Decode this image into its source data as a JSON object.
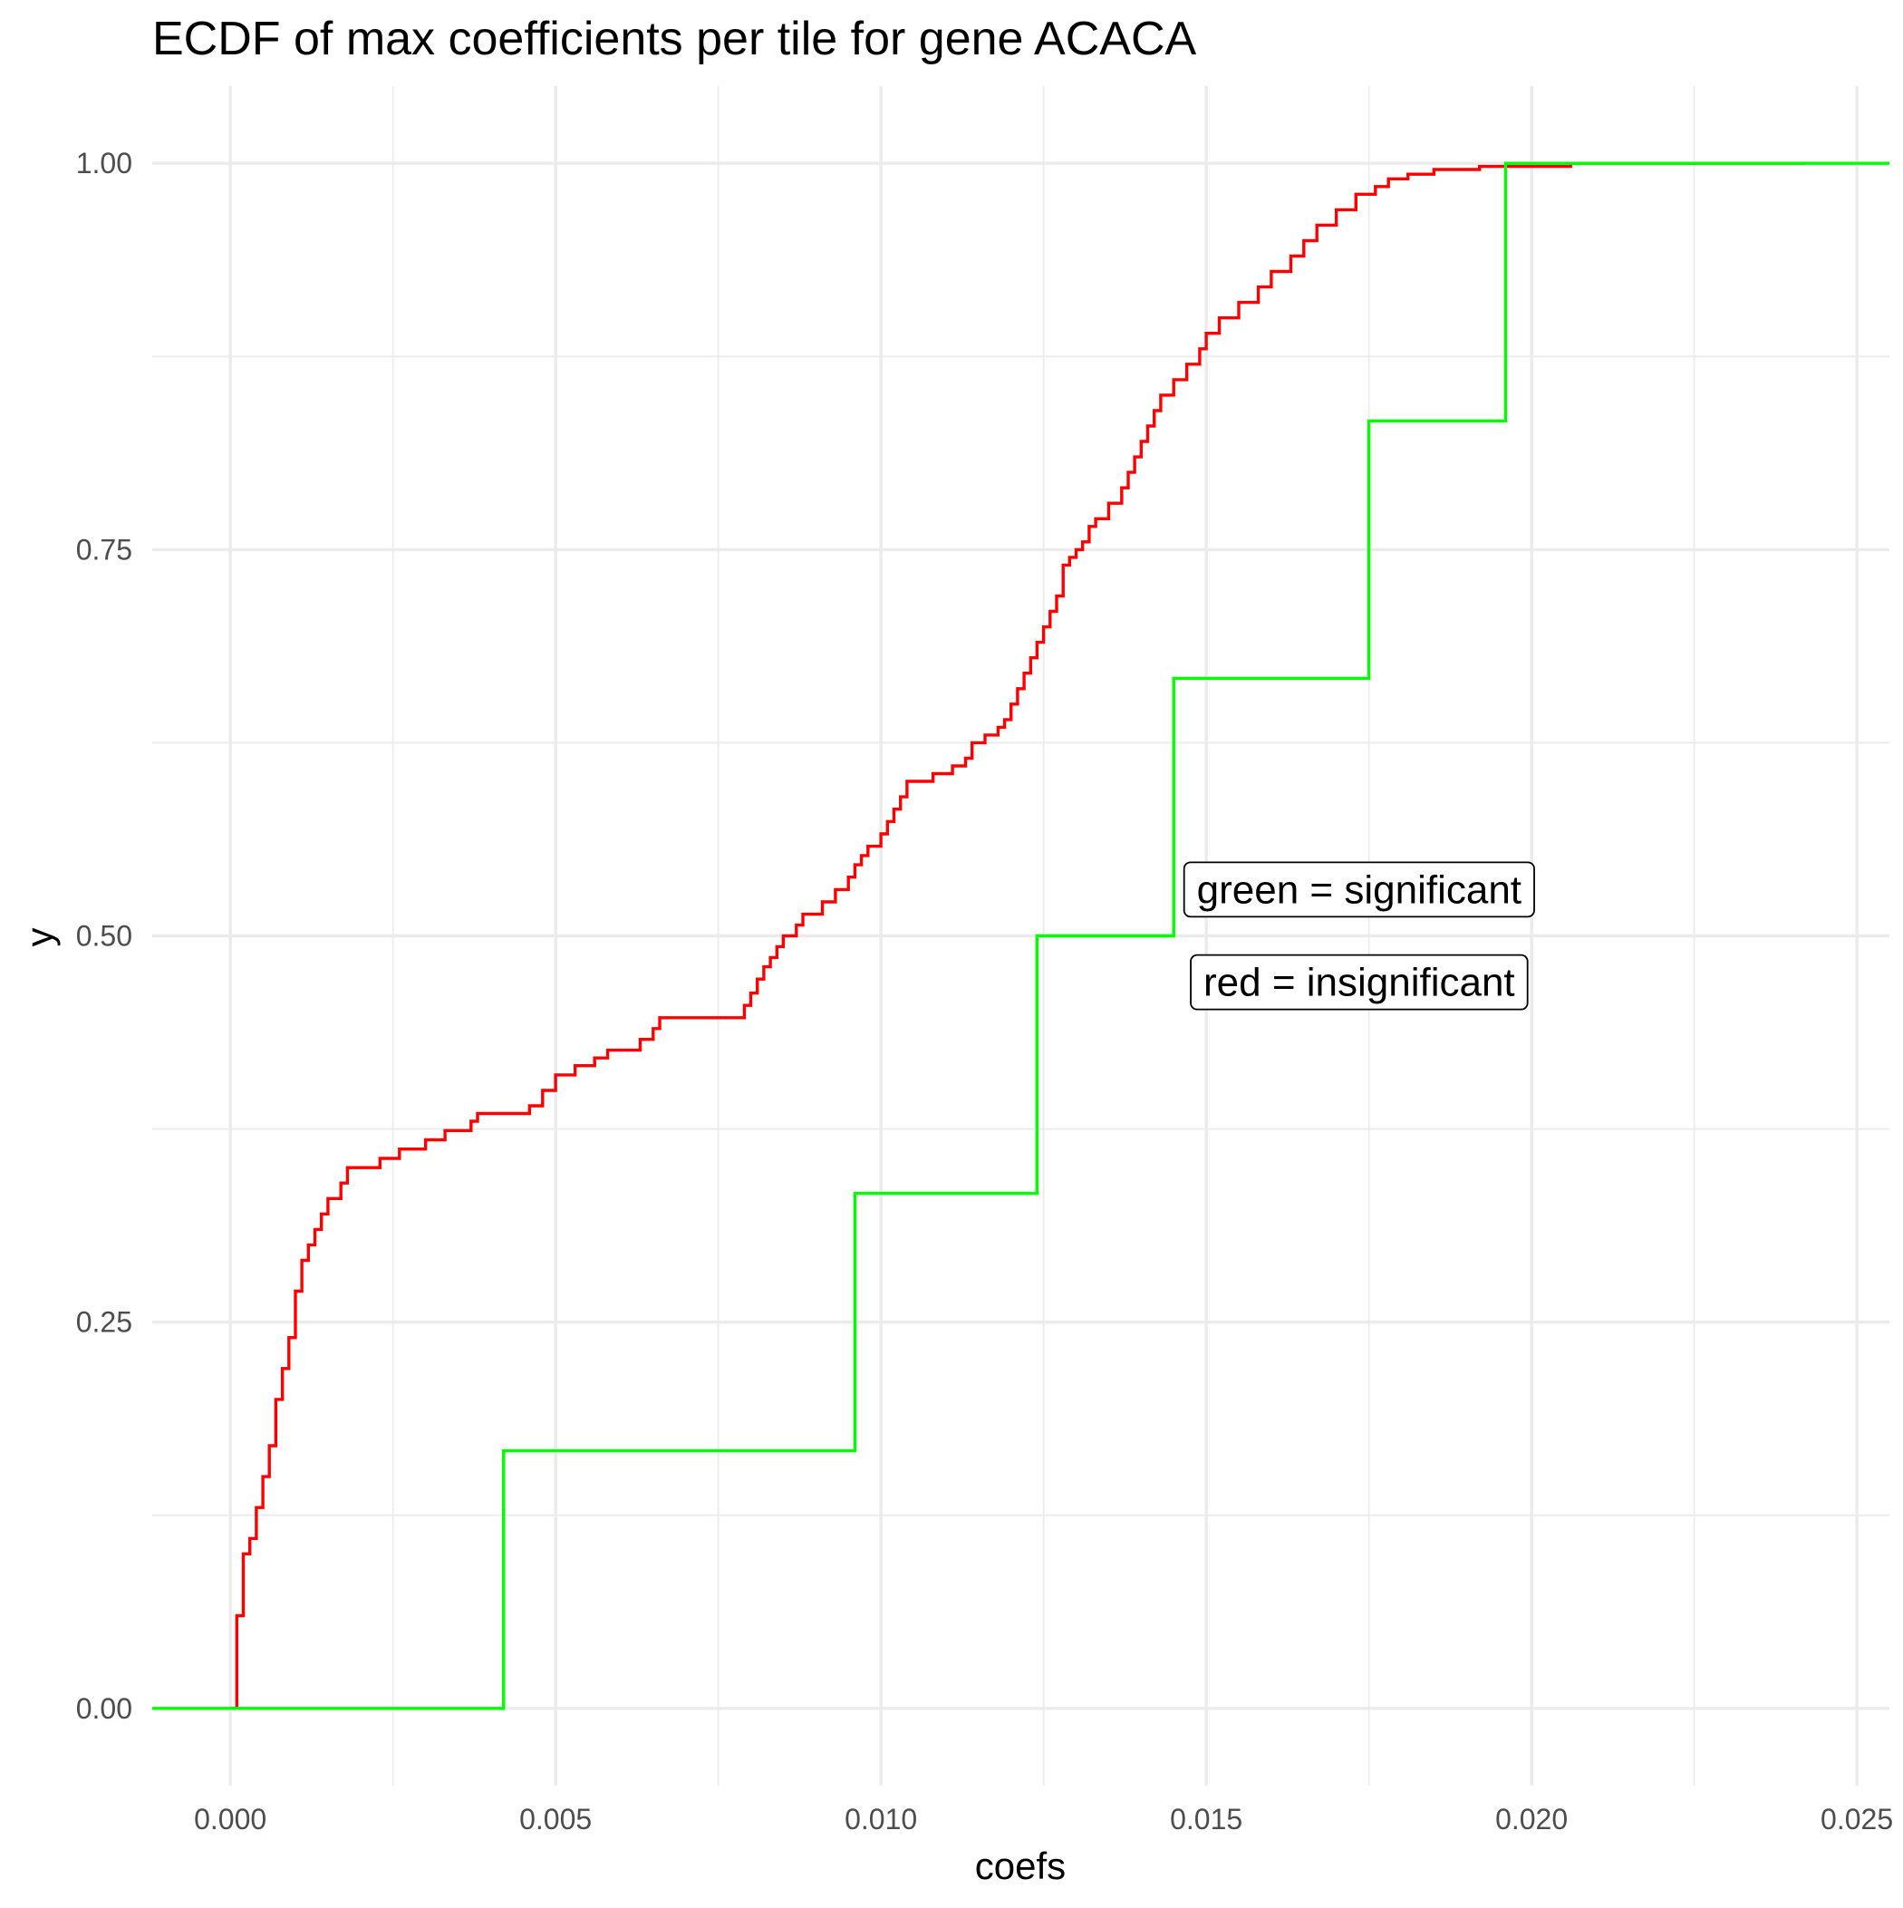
{
  "chart_data": {
    "type": "line",
    "subtype": "ecdf-step",
    "title": "ECDF of max coefficients per tile for gene ACACA",
    "xlabel": "coefs",
    "ylabel": "y",
    "xlim": [
      -0.0012,
      0.0255
    ],
    "ylim": [
      -0.05,
      1.05
    ],
    "x_ticks": [
      0.0,
      0.005,
      0.01,
      0.015,
      0.02,
      0.025
    ],
    "x_tick_labels": [
      "0.000",
      "0.005",
      "0.010",
      "0.015",
      "0.020",
      "0.025"
    ],
    "y_ticks": [
      0.0,
      0.25,
      0.5,
      0.75,
      1.0
    ],
    "y_tick_labels": [
      "0.00",
      "0.25",
      "0.50",
      "0.75",
      "1.00"
    ],
    "grid": true,
    "legend": "none",
    "series": [
      {
        "color": "#ff0000",
        "steps": [
          [
            0.0,
            0.0
          ],
          [
            0.0001,
            0.06
          ],
          [
            0.0002,
            0.1
          ],
          [
            0.0003,
            0.11
          ],
          [
            0.0004,
            0.13
          ],
          [
            0.0005,
            0.15
          ],
          [
            0.0006,
            0.17
          ],
          [
            0.0007,
            0.2
          ],
          [
            0.0008,
            0.22
          ],
          [
            0.0009,
            0.24
          ],
          [
            0.001,
            0.27
          ],
          [
            0.0011,
            0.29
          ],
          [
            0.0012,
            0.3
          ],
          [
            0.0013,
            0.31
          ],
          [
            0.0014,
            0.32
          ],
          [
            0.0015,
            0.33
          ],
          [
            0.0017,
            0.34
          ],
          [
            0.0018,
            0.35
          ],
          [
            0.0023,
            0.356
          ],
          [
            0.0026,
            0.362
          ],
          [
            0.003,
            0.368
          ],
          [
            0.0033,
            0.374
          ],
          [
            0.0037,
            0.38
          ],
          [
            0.0038,
            0.385
          ],
          [
            0.0046,
            0.39
          ],
          [
            0.0048,
            0.4
          ],
          [
            0.005,
            0.41
          ],
          [
            0.0053,
            0.416
          ],
          [
            0.0056,
            0.421
          ],
          [
            0.0058,
            0.426
          ],
          [
            0.0063,
            0.433
          ],
          [
            0.0065,
            0.44
          ],
          [
            0.0066,
            0.447
          ],
          [
            0.0079,
            0.455
          ],
          [
            0.008,
            0.463
          ],
          [
            0.0081,
            0.472
          ],
          [
            0.0082,
            0.48
          ],
          [
            0.0083,
            0.486
          ],
          [
            0.0084,
            0.493
          ],
          [
            0.0085,
            0.5
          ],
          [
            0.0087,
            0.507
          ],
          [
            0.0088,
            0.514
          ],
          [
            0.0091,
            0.522
          ],
          [
            0.0093,
            0.53
          ],
          [
            0.0095,
            0.538
          ],
          [
            0.0096,
            0.546
          ],
          [
            0.0097,
            0.552
          ],
          [
            0.0098,
            0.558
          ],
          [
            0.01,
            0.566
          ],
          [
            0.0101,
            0.574
          ],
          [
            0.0102,
            0.582
          ],
          [
            0.0103,
            0.59
          ],
          [
            0.0104,
            0.6
          ],
          [
            0.0108,
            0.605
          ],
          [
            0.0111,
            0.61
          ],
          [
            0.0113,
            0.615
          ],
          [
            0.0114,
            0.625
          ],
          [
            0.0116,
            0.63
          ],
          [
            0.0118,
            0.635
          ],
          [
            0.0119,
            0.64
          ],
          [
            0.012,
            0.65
          ],
          [
            0.0121,
            0.66
          ],
          [
            0.0122,
            0.67
          ],
          [
            0.0123,
            0.68
          ],
          [
            0.0124,
            0.69
          ],
          [
            0.0125,
            0.7
          ],
          [
            0.0126,
            0.71
          ],
          [
            0.0127,
            0.72
          ],
          [
            0.0128,
            0.74
          ],
          [
            0.0129,
            0.745
          ],
          [
            0.013,
            0.75
          ],
          [
            0.0131,
            0.755
          ],
          [
            0.0132,
            0.765
          ],
          [
            0.0133,
            0.77
          ],
          [
            0.0135,
            0.78
          ],
          [
            0.0137,
            0.79
          ],
          [
            0.0138,
            0.8
          ],
          [
            0.0139,
            0.81
          ],
          [
            0.014,
            0.82
          ],
          [
            0.0141,
            0.83
          ],
          [
            0.0142,
            0.84
          ],
          [
            0.0143,
            0.85
          ],
          [
            0.0145,
            0.86
          ],
          [
            0.0147,
            0.87
          ],
          [
            0.0149,
            0.88
          ],
          [
            0.015,
            0.89
          ],
          [
            0.0152,
            0.9
          ],
          [
            0.0155,
            0.91
          ],
          [
            0.0158,
            0.92
          ],
          [
            0.016,
            0.93
          ],
          [
            0.0163,
            0.94
          ],
          [
            0.0165,
            0.95
          ],
          [
            0.0167,
            0.96
          ],
          [
            0.017,
            0.97
          ],
          [
            0.0173,
            0.98
          ],
          [
            0.0176,
            0.985
          ],
          [
            0.0178,
            0.99
          ],
          [
            0.0181,
            0.993
          ],
          [
            0.0185,
            0.996
          ],
          [
            0.0192,
            0.998
          ],
          [
            0.0206,
            1.0
          ]
        ],
        "x_end": 0.0242
      },
      {
        "color": "#00ff00",
        "steps": [
          [
            0.0042,
            0.1667
          ],
          [
            0.0096,
            0.3333
          ],
          [
            0.0124,
            0.5
          ],
          [
            0.0145,
            0.6667
          ],
          [
            0.0175,
            0.8333
          ],
          [
            0.0196,
            1.0
          ]
        ],
        "x_start": -0.0012,
        "x_end": 0.0255
      }
    ],
    "annotations": [
      {
        "id": "green",
        "text": "green = significant",
        "x": 0.01735,
        "y": 0.53
      },
      {
        "id": "red",
        "text": "red = insignificant",
        "x": 0.01735,
        "y": 0.47
      }
    ]
  }
}
